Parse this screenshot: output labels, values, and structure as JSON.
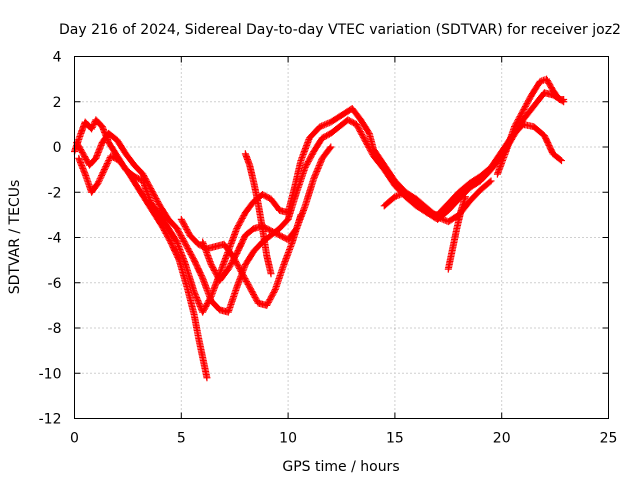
{
  "chart_data": {
    "type": "scatter",
    "title": "Day 216 of 2024, Sidereal Day-to-day VTEC variation (SDTVAR) for receiver joz2",
    "xlabel": "GPS time / hours",
    "ylabel": "SDTVAR / TECUs",
    "xlim": [
      0,
      25
    ],
    "ylim": [
      -12,
      4
    ],
    "x_ticks": [
      "0",
      "5",
      "10",
      "15",
      "20",
      "25"
    ],
    "y_ticks": [
      "4",
      "2",
      "0",
      "-2",
      "-4",
      "-6",
      "-8",
      "-10",
      "-12"
    ],
    "x_tick_values": [
      0,
      5,
      10,
      15,
      20,
      25
    ],
    "y_tick_values": [
      4,
      2,
      0,
      -2,
      -4,
      -6,
      -8,
      -10,
      -12
    ],
    "grid": true,
    "marker": "plus",
    "series_color": "#ff0000",
    "series": [
      {
        "points": [
          [
            0.0,
            -0.2
          ],
          [
            0.3,
            0.6
          ],
          [
            0.5,
            1.1
          ],
          [
            0.8,
            0.8
          ],
          [
            1.0,
            1.2
          ],
          [
            1.3,
            0.9
          ],
          [
            1.6,
            0.2
          ],
          [
            2.0,
            -0.4
          ],
          [
            2.4,
            -1.0
          ],
          [
            2.8,
            -1.3
          ],
          [
            3.2,
            -1.5
          ],
          [
            3.6,
            -2.5
          ],
          [
            4.0,
            -3.0
          ],
          [
            4.4,
            -3.6
          ],
          [
            4.8,
            -4.2
          ],
          [
            5.2,
            -5.2
          ],
          [
            5.6,
            -6.4
          ],
          [
            6.0,
            -7.3
          ],
          [
            6.4,
            -6.6
          ],
          [
            6.8,
            -5.6
          ],
          [
            7.2,
            -4.6
          ],
          [
            7.6,
            -3.6
          ],
          [
            8.0,
            -2.9
          ],
          [
            8.4,
            -2.4
          ],
          [
            8.8,
            -2.1
          ],
          [
            9.2,
            -2.3
          ],
          [
            9.6,
            -2.8
          ],
          [
            10.0,
            -2.9
          ],
          [
            10.3,
            -1.8
          ],
          [
            10.6,
            -0.6
          ],
          [
            11.0,
            0.4
          ],
          [
            11.5,
            0.9
          ],
          [
            12.0,
            1.1
          ],
          [
            12.5,
            1.4
          ],
          [
            13.0,
            1.7
          ],
          [
            13.4,
            1.2
          ],
          [
            13.8,
            0.6
          ],
          [
            14.0,
            -0.1
          ],
          [
            14.5,
            -0.8
          ],
          [
            15.0,
            -1.5
          ],
          [
            15.5,
            -2.0
          ],
          [
            16.0,
            -2.4
          ],
          [
            16.5,
            -2.9
          ],
          [
            17.0,
            -3.2
          ],
          [
            17.5,
            -2.8
          ],
          [
            18.0,
            -2.3
          ],
          [
            18.5,
            -1.8
          ],
          [
            19.0,
            -1.5
          ],
          [
            19.5,
            -1.0
          ],
          [
            20.0,
            -0.4
          ],
          [
            20.5,
            0.4
          ],
          [
            21.0,
            1.2
          ],
          [
            21.5,
            1.8
          ],
          [
            22.0,
            2.4
          ],
          [
            22.4,
            2.3
          ],
          [
            22.9,
            2.0
          ]
        ]
      },
      {
        "points": [
          [
            0.1,
            0.2
          ],
          [
            0.4,
            -0.3
          ],
          [
            0.7,
            -0.8
          ],
          [
            1.0,
            -0.5
          ],
          [
            1.3,
            0.2
          ],
          [
            1.6,
            0.6
          ],
          [
            2.0,
            0.3
          ],
          [
            2.4,
            -0.3
          ],
          [
            2.8,
            -0.8
          ],
          [
            3.2,
            -1.2
          ],
          [
            3.6,
            -1.9
          ],
          [
            4.0,
            -2.6
          ],
          [
            4.4,
            -3.2
          ],
          [
            4.8,
            -3.6
          ],
          [
            5.2,
            -4.3
          ],
          [
            5.6,
            -5.0
          ],
          [
            6.0,
            -5.8
          ],
          [
            6.4,
            -6.8
          ],
          [
            6.8,
            -7.2
          ],
          [
            7.2,
            -7.3
          ],
          [
            7.6,
            -6.2
          ],
          [
            8.0,
            -5.2
          ],
          [
            8.4,
            -4.6
          ],
          [
            8.8,
            -4.2
          ],
          [
            9.2,
            -3.9
          ],
          [
            9.6,
            -3.6
          ],
          [
            10.0,
            -3.2
          ],
          [
            10.4,
            -2.0
          ],
          [
            10.8,
            -0.9
          ],
          [
            11.2,
            -0.2
          ],
          [
            11.6,
            0.4
          ],
          [
            12.0,
            0.6
          ],
          [
            12.4,
            0.9
          ],
          [
            12.8,
            1.2
          ],
          [
            13.2,
            1.0
          ],
          [
            13.6,
            0.3
          ],
          [
            14.0,
            -0.4
          ],
          [
            14.5,
            -1.0
          ],
          [
            15.0,
            -1.7
          ],
          [
            15.5,
            -2.2
          ],
          [
            16.0,
            -2.6
          ],
          [
            16.5,
            -2.9
          ],
          [
            17.0,
            -3.0
          ],
          [
            17.5,
            -2.5
          ],
          [
            18.0,
            -2.0
          ],
          [
            18.5,
            -1.6
          ],
          [
            19.0,
            -1.3
          ],
          [
            19.5,
            -0.9
          ],
          [
            20.0,
            -0.2
          ],
          [
            20.5,
            0.5
          ],
          [
            21.0,
            1.0
          ],
          [
            21.5,
            0.9
          ],
          [
            22.0,
            0.5
          ],
          [
            22.4,
            -0.3
          ],
          [
            22.8,
            -0.6
          ]
        ]
      },
      {
        "points": [
          [
            0.2,
            -0.5
          ],
          [
            0.5,
            -1.2
          ],
          [
            0.8,
            -2.0
          ],
          [
            1.1,
            -1.6
          ],
          [
            1.4,
            -1.0
          ],
          [
            1.7,
            -0.4
          ],
          [
            2.1,
            -0.6
          ],
          [
            2.5,
            -1.1
          ],
          [
            2.9,
            -1.7
          ],
          [
            3.3,
            -2.3
          ],
          [
            3.7,
            -2.9
          ],
          [
            4.1,
            -3.5
          ],
          [
            4.5,
            -4.2
          ],
          [
            4.9,
            -5.0
          ],
          [
            5.3,
            -6.3
          ],
          [
            5.6,
            -7.4
          ],
          [
            5.8,
            -8.4
          ],
          [
            6.0,
            -9.3
          ],
          [
            6.2,
            -10.2
          ]
        ]
      },
      {
        "points": [
          [
            5.0,
            -3.2
          ],
          [
            5.4,
            -3.9
          ],
          [
            5.8,
            -4.3
          ],
          [
            6.2,
            -4.5
          ],
          [
            6.6,
            -4.4
          ],
          [
            7.0,
            -4.3
          ],
          [
            7.4,
            -4.8
          ],
          [
            7.8,
            -5.5
          ],
          [
            8.2,
            -6.2
          ],
          [
            8.6,
            -6.9
          ],
          [
            9.0,
            -7.0
          ],
          [
            9.4,
            -6.3
          ],
          [
            9.8,
            -5.2
          ],
          [
            10.2,
            -4.2
          ],
          [
            10.6,
            -3.0
          ]
        ]
      },
      {
        "points": [
          [
            6.0,
            -4.2
          ],
          [
            6.4,
            -5.2
          ],
          [
            6.8,
            -5.9
          ],
          [
            7.2,
            -5.4
          ],
          [
            7.6,
            -4.7
          ],
          [
            8.0,
            -3.9
          ],
          [
            8.4,
            -3.6
          ],
          [
            8.8,
            -3.5
          ],
          [
            9.2,
            -3.7
          ],
          [
            9.6,
            -3.9
          ],
          [
            10.0,
            -4.1
          ],
          [
            10.4,
            -3.6
          ],
          [
            10.8,
            -2.6
          ],
          [
            11.2,
            -1.4
          ],
          [
            11.6,
            -0.5
          ],
          [
            12.0,
            0.0
          ]
        ]
      },
      {
        "points": [
          [
            8.0,
            -0.3
          ],
          [
            8.2,
            -0.8
          ],
          [
            8.4,
            -1.6
          ],
          [
            8.6,
            -2.5
          ],
          [
            8.8,
            -3.6
          ],
          [
            9.0,
            -4.8
          ],
          [
            9.2,
            -5.6
          ]
        ]
      },
      {
        "points": [
          [
            14.5,
            -2.6
          ],
          [
            15.0,
            -2.2
          ],
          [
            15.5,
            -2.0
          ],
          [
            16.0,
            -2.3
          ],
          [
            16.5,
            -2.7
          ],
          [
            17.0,
            -3.1
          ],
          [
            17.5,
            -3.3
          ],
          [
            18.0,
            -3.0
          ],
          [
            18.5,
            -2.4
          ],
          [
            19.0,
            -1.9
          ],
          [
            19.5,
            -1.5
          ]
        ]
      },
      {
        "points": [
          [
            17.5,
            -5.4
          ],
          [
            17.7,
            -4.5
          ],
          [
            17.9,
            -3.6
          ],
          [
            18.1,
            -2.8
          ],
          [
            18.3,
            -2.2
          ]
        ]
      },
      {
        "points": [
          [
            19.8,
            -1.2
          ],
          [
            20.2,
            -0.2
          ],
          [
            20.6,
            0.9
          ],
          [
            21.0,
            1.6
          ],
          [
            21.4,
            2.3
          ],
          [
            21.8,
            2.9
          ],
          [
            22.1,
            3.0
          ],
          [
            22.4,
            2.5
          ],
          [
            22.7,
            2.1
          ],
          [
            22.9,
            2.1
          ]
        ]
      }
    ]
  }
}
